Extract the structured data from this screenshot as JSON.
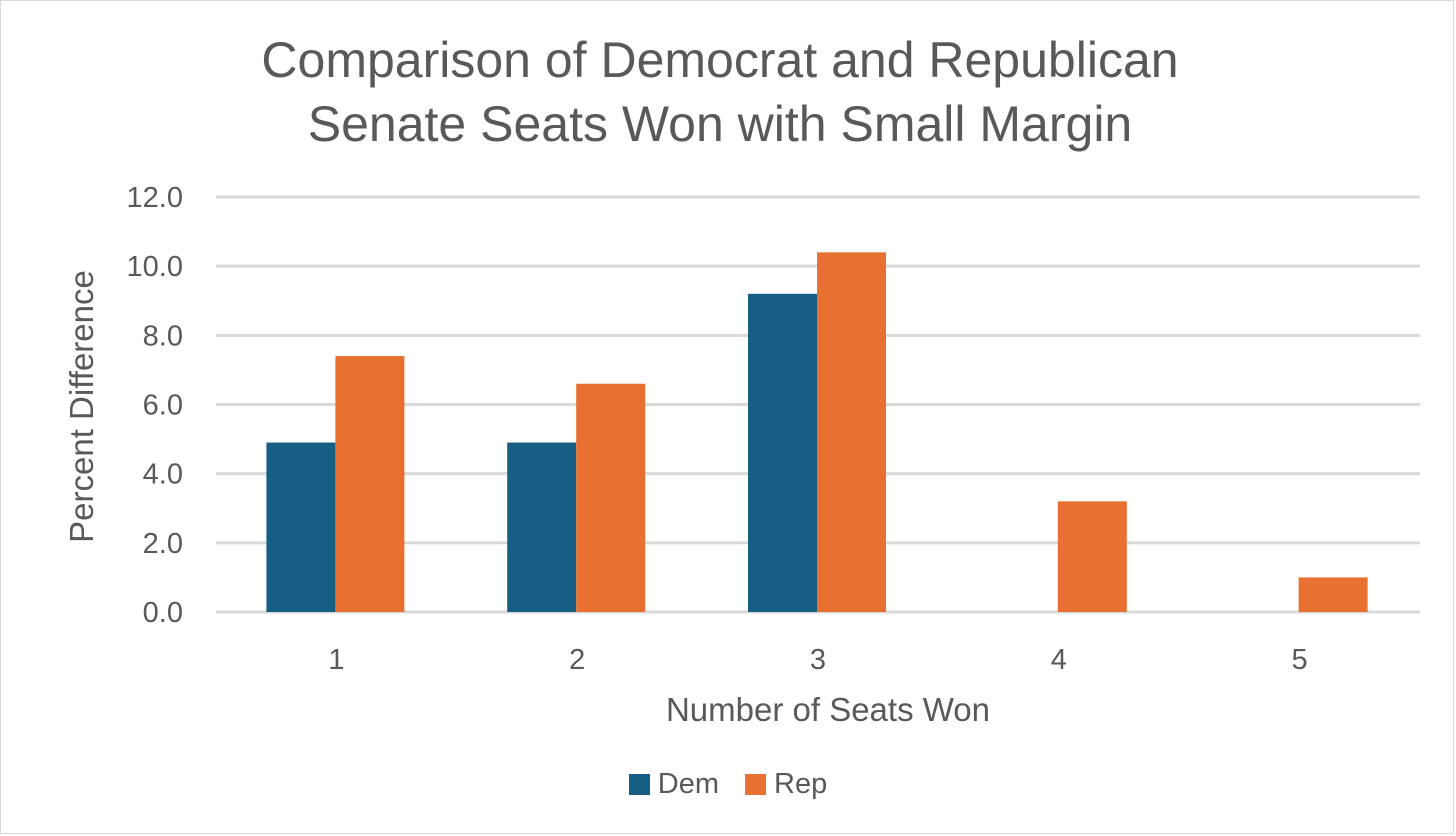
{
  "chart_data": {
    "type": "bar",
    "title": [
      "Comparison of Democrat and Republican",
      "Senate Seats Won with Small Margin"
    ],
    "xlabel": "Number of Seats Won",
    "ylabel": "Percent Difference",
    "categories": [
      "1",
      "2",
      "3",
      "4",
      "5"
    ],
    "yticks": [
      "0.0",
      "2.0",
      "4.0",
      "6.0",
      "8.0",
      "10.0",
      "12.0"
    ],
    "ylim": [
      0,
      12
    ],
    "grid": true,
    "legend": "bottom",
    "series": [
      {
        "name": "Dem",
        "color": "#165e83",
        "values": [
          4.9,
          4.9,
          9.2,
          null,
          null
        ]
      },
      {
        "name": "Rep",
        "color": "#e87030",
        "values": [
          7.4,
          6.6,
          10.4,
          3.2,
          1.0
        ]
      }
    ]
  }
}
